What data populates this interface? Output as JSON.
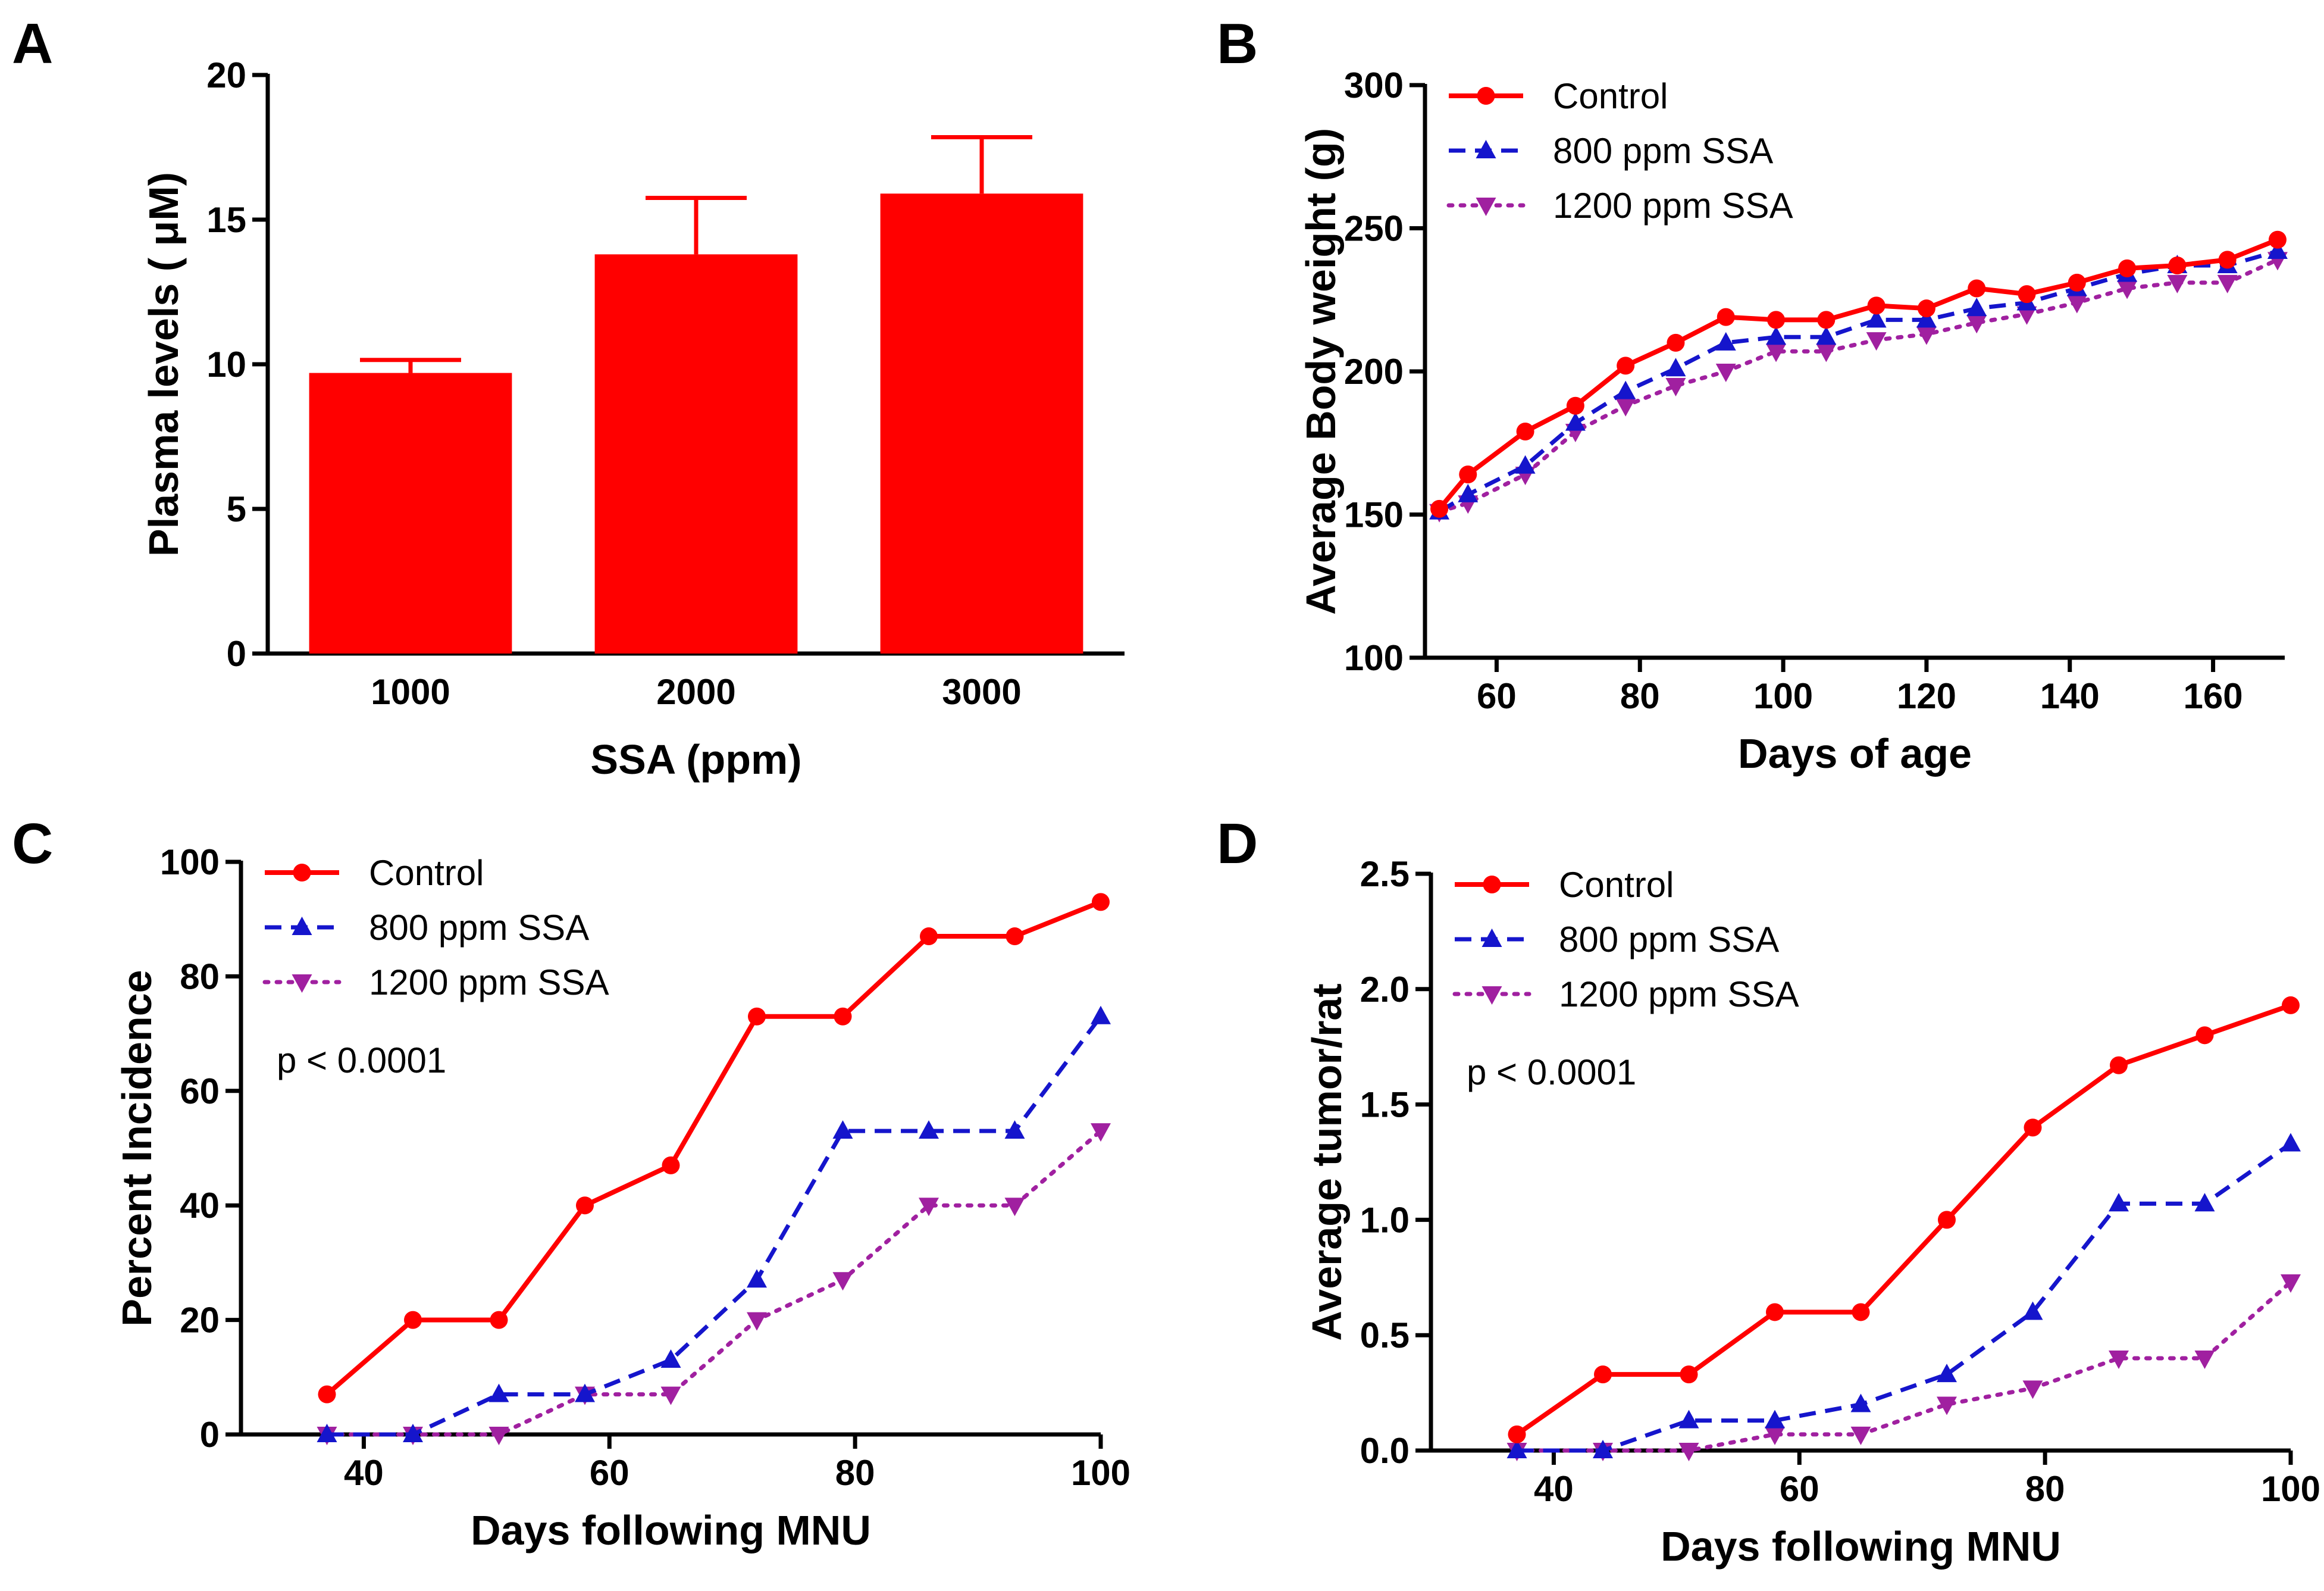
{
  "colors": {
    "control": "#ff0000",
    "ssa800": "#1515cc",
    "ssa1200": "#a020a0",
    "axis": "#000000"
  },
  "chart_data": [
    {
      "id": "A",
      "panel_label": "A",
      "type": "bar",
      "categories": [
        "1000",
        "2000",
        "3000"
      ],
      "values": [
        9.7,
        13.8,
        15.9
      ],
      "errors": [
        0.45,
        1.95,
        1.95
      ],
      "xlabel": "SSA (ppm)",
      "ylabel": "Plasma levels ( μM)",
      "ylim": [
        0,
        20
      ],
      "yticks": [
        0,
        5,
        10,
        15,
        20
      ],
      "legend": null
    },
    {
      "id": "B",
      "panel_label": "B",
      "type": "line",
      "xlabel": "Days of age",
      "ylabel": "Average Body weight (g)",
      "xlim": [
        50,
        170
      ],
      "ylim": [
        100,
        300
      ],
      "xticks": [
        60,
        80,
        100,
        120,
        140,
        160
      ],
      "yticks": [
        100,
        150,
        200,
        250,
        300
      ],
      "legend": "top-left",
      "x": [
        52,
        56,
        64,
        71,
        78,
        85,
        92,
        99,
        106,
        113,
        120,
        127,
        134,
        141,
        148,
        155,
        162,
        169
      ],
      "series": [
        {
          "name": "Control",
          "marker": "circle",
          "dash": "solid",
          "values": [
            152,
            164,
            179,
            188,
            202,
            210,
            219,
            218,
            218,
            223,
            222,
            229,
            227,
            231,
            236,
            237,
            239,
            246
          ]
        },
        {
          "name": "800 ppm SSA",
          "marker": "triangle-up",
          "dash": "dashed",
          "values": [
            151,
            157,
            167,
            182,
            193,
            201,
            210,
            212,
            212,
            218,
            218,
            222,
            224,
            229,
            234,
            237,
            237,
            242
          ]
        },
        {
          "name": "1200 ppm SSA",
          "marker": "triangle-down",
          "dash": "dotted",
          "values": [
            151,
            154,
            164,
            179,
            188,
            195,
            200,
            207,
            207,
            211,
            213,
            217,
            220,
            224,
            229,
            231,
            231,
            239
          ]
        }
      ]
    },
    {
      "id": "C",
      "panel_label": "C",
      "type": "line",
      "xlabel": "Days following MNU",
      "ylabel": "Percent Incidence",
      "xlim": [
        30,
        100
      ],
      "ylim": [
        0,
        100
      ],
      "xticks": [
        40,
        60,
        80,
        100
      ],
      "yticks": [
        0,
        20,
        40,
        60,
        80,
        100
      ],
      "legend": "top-left",
      "annotation": "p < 0.0001",
      "x": [
        37,
        44,
        51,
        58,
        65,
        72,
        79,
        86,
        93,
        100
      ],
      "series": [
        {
          "name": "Control",
          "marker": "circle",
          "dash": "solid",
          "values": [
            7,
            20,
            20,
            40,
            47,
            73,
            73,
            87,
            87,
            93
          ]
        },
        {
          "name": "800 ppm SSA",
          "marker": "triangle-up",
          "dash": "dashed",
          "values": [
            0,
            0,
            7,
            7,
            13,
            27,
            53,
            53,
            53,
            73
          ]
        },
        {
          "name": "1200 ppm SSA",
          "marker": "triangle-down",
          "dash": "dotted",
          "values": [
            0,
            0,
            0,
            7,
            7,
            20,
            27,
            40,
            40,
            53
          ]
        }
      ]
    },
    {
      "id": "D",
      "panel_label": "D",
      "type": "line",
      "xlabel": "Days following MNU",
      "ylabel": "Average tumor/rat",
      "xlim": [
        30,
        100
      ],
      "ylim": [
        0,
        2.5
      ],
      "xticks": [
        40,
        60,
        80,
        100
      ],
      "yticks": [
        0.0,
        0.5,
        1.0,
        1.5,
        2.0,
        2.5
      ],
      "ytick_labels": [
        "0.0",
        "0.5",
        "1.0",
        "1.5",
        "2.0",
        "2.5"
      ],
      "legend": "top-left",
      "annotation": "p < 0.0001",
      "x": [
        37,
        44,
        51,
        58,
        65,
        72,
        79,
        86,
        93,
        100
      ],
      "series": [
        {
          "name": "Control",
          "marker": "circle",
          "dash": "solid",
          "values": [
            0.07,
            0.33,
            0.33,
            0.6,
            0.6,
            1.0,
            1.4,
            1.67,
            1.8,
            1.93
          ]
        },
        {
          "name": "800 ppm SSA",
          "marker": "triangle-up",
          "dash": "dashed",
          "values": [
            0.0,
            0.0,
            0.13,
            0.13,
            0.2,
            0.33,
            0.6,
            1.07,
            1.07,
            1.33
          ]
        },
        {
          "name": "1200 ppm SSA",
          "marker": "triangle-down",
          "dash": "dotted",
          "values": [
            0.0,
            0.0,
            0.0,
            0.07,
            0.07,
            0.2,
            0.27,
            0.4,
            0.4,
            0.73
          ]
        }
      ]
    }
  ]
}
